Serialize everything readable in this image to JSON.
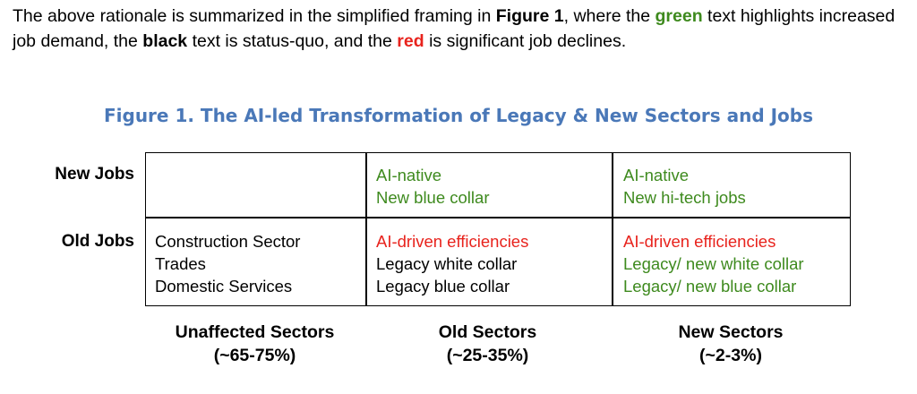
{
  "intro": {
    "part1": "The above rationale is summarized in the simplified framing in ",
    "fig_ref": "Figure 1",
    "part2": ", where the ",
    "green_word": "green",
    "part3": " text highlights increased job demand, the ",
    "black_word": "black",
    "part4": " text is status-quo, and the ",
    "red_word": "red",
    "part5": " is significant job declines."
  },
  "figure": {
    "title": "Figure 1. The AI-led Transformation of Legacy & New Sectors and Jobs",
    "row_labels": [
      "New Jobs",
      "Old Jobs"
    ],
    "column_labels": [
      {
        "name": "Unaffected Sectors",
        "share": "(~65-75%)"
      },
      {
        "name": "Old Sectors",
        "share": "(~25-35%)"
      },
      {
        "name": "New Sectors",
        "share": "(~2-3%)"
      }
    ],
    "cells": {
      "new_jobs_unaffected": [],
      "new_jobs_old_sectors": [
        {
          "text": "AI-native",
          "color": "green"
        },
        {
          "text": "New blue collar",
          "color": "green"
        }
      ],
      "new_jobs_new_sectors": [
        {
          "text": "AI-native",
          "color": "green"
        },
        {
          "text": "New hi-tech jobs",
          "color": "green"
        }
      ],
      "old_jobs_unaffected": [
        {
          "text": "Construction Sector",
          "color": "black"
        },
        {
          "text": "Trades",
          "color": "black"
        },
        {
          "text": "Domestic Services",
          "color": "black"
        }
      ],
      "old_jobs_old_sectors": [
        {
          "text": "AI-driven efficiencies",
          "color": "red"
        },
        {
          "text": "Legacy white collar",
          "color": "black"
        },
        {
          "text": "Legacy blue collar",
          "color": "black"
        }
      ],
      "old_jobs_new_sectors": [
        {
          "text": "AI-driven efficiencies",
          "color": "red"
        },
        {
          "text": "Legacy/ new white collar",
          "color": "green"
        },
        {
          "text": "Legacy/ new blue collar",
          "color": "green"
        }
      ]
    },
    "colors": {
      "green": "#3e8a1e",
      "red": "#e8231d",
      "black": "#000000",
      "title_blue": "#4a78b8"
    }
  }
}
